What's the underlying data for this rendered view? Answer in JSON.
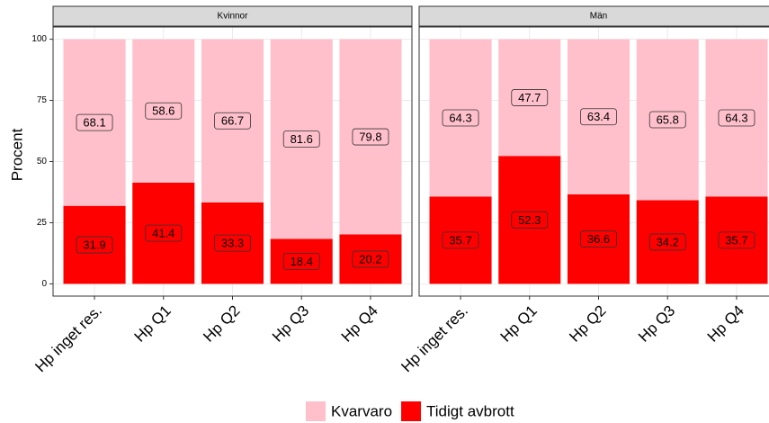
{
  "chart_data": {
    "type": "bar",
    "stacked": true,
    "facets": [
      "Kvinnor",
      "Män"
    ],
    "categories": [
      "Hp inget res.",
      "Hp Q1",
      "Hp Q2",
      "Hp Q3",
      "Hp Q4"
    ],
    "series": [
      {
        "name": "Kvarvaro",
        "color": "#ffc0cb",
        "values": [
          [
            68.1,
            58.6,
            66.7,
            81.6,
            79.8
          ],
          [
            64.3,
            47.7,
            63.4,
            65.8,
            64.3
          ]
        ]
      },
      {
        "name": "Tidigt avbrott",
        "color": "#ff0000",
        "values": [
          [
            31.9,
            41.4,
            33.3,
            18.4,
            20.2
          ],
          [
            35.7,
            52.3,
            36.6,
            34.2,
            35.7
          ]
        ]
      }
    ],
    "ylabel": "Procent",
    "ylim": [
      -5,
      105
    ],
    "yticks": [
      0,
      25,
      50,
      75,
      100
    ],
    "grid": true,
    "legend": "bottom"
  }
}
